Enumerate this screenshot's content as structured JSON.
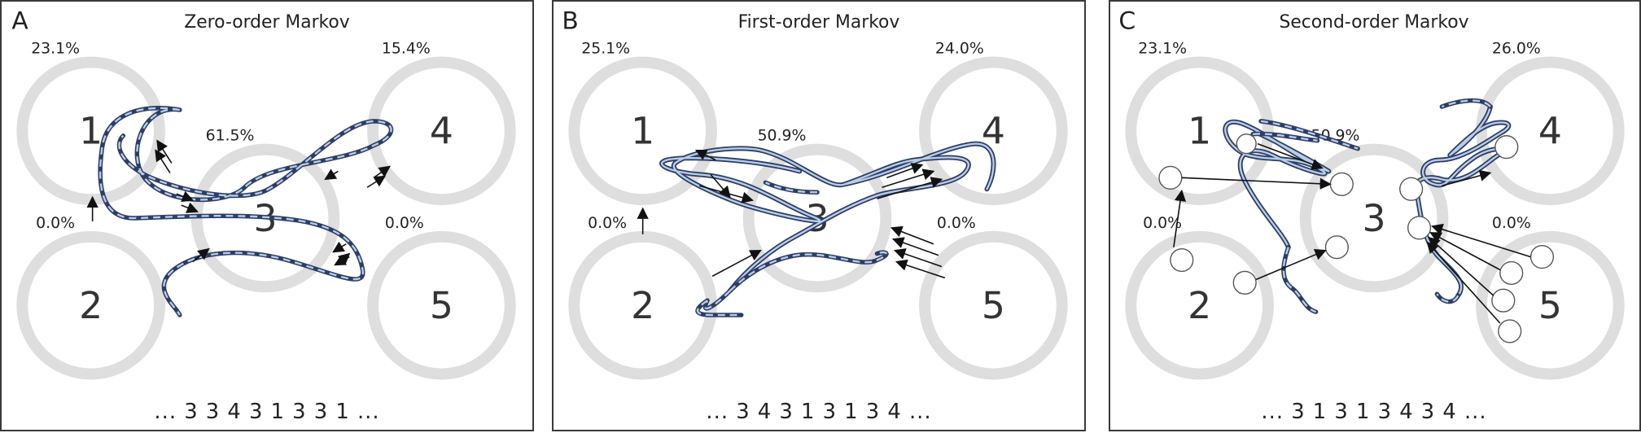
{
  "panels": [
    {
      "letter": "A",
      "title": "Zero-order Markov",
      "pct_1": "23.1%",
      "pct_4": "15.4%",
      "pct_center": "61.5%",
      "pct_2": "0.0%",
      "pct_5": "0.0%",
      "sequence": "... 3 3 4 3 1 3 3 1 ..."
    },
    {
      "letter": "B",
      "title": "First-order Markov",
      "pct_1": "25.1%",
      "pct_4": "24.0%",
      "pct_center": "50.9%",
      "pct_2": "0.0%",
      "pct_5": "0.0%",
      "sequence": "... 3 4 3 1 3 1 3 4 ..."
    },
    {
      "letter": "C",
      "title": "Second-order Markov",
      "pct_1": "23.1%",
      "pct_4": "26.0%",
      "pct_center": "50.9%",
      "pct_2": "0.0%",
      "pct_5": "0.0%",
      "sequence": "... 3 1 3 1 3 4 3 4 ..."
    }
  ],
  "states": [
    "1",
    "2",
    "3",
    "4",
    "5"
  ],
  "colors": {
    "ring": "#dedede",
    "trajectory_outline": "#2c3d66",
    "trajectory_fill": "#b8cde6",
    "arrow": "#111111"
  }
}
